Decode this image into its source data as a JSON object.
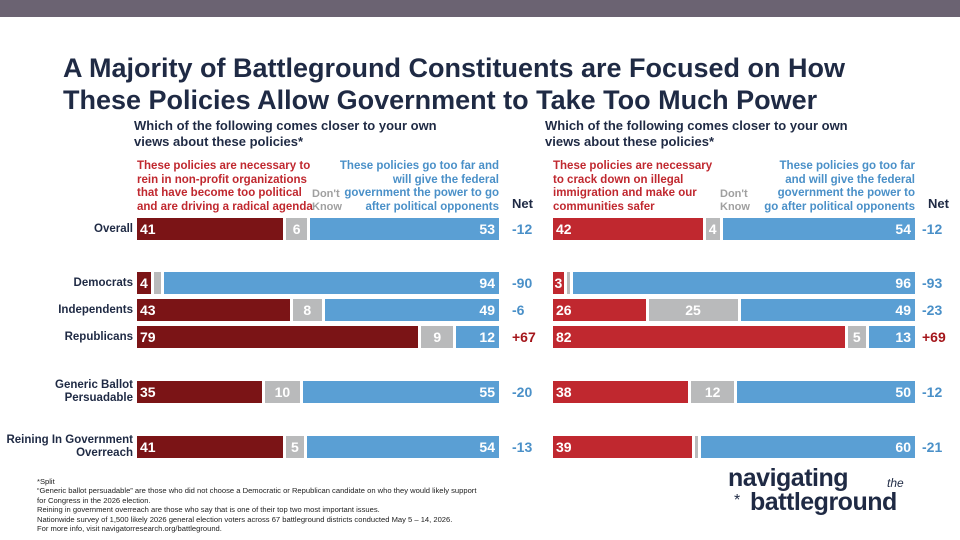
{
  "title_line1": "A Majority of Battleground Constituents are Focused on How",
  "title_line2": "These Policies Allow Government to Take Too Much Power",
  "colors": {
    "left_dark_red": "#7b1416",
    "left_red": "#c0282f",
    "dont_know": "#b9babb",
    "right_blue": "#5a9fd4",
    "net_red": "#a4161b",
    "net_blue": "#4a90c8"
  },
  "row_labels": [
    "Overall",
    "Democrats",
    "Independents",
    "Republicans",
    "Generic Ballot Persuadable",
    "Reining In Government Overreach"
  ],
  "row_label_lines": [
    [
      "Overall"
    ],
    [
      "Democrats"
    ],
    [
      "Independents"
    ],
    [
      "Republicans"
    ],
    [
      "Generic Ballot",
      "Persuadable"
    ],
    [
      "Reining In Government",
      "Overreach"
    ]
  ],
  "chart_data": [
    {
      "type": "bar",
      "stacked": true,
      "orientation": "horizontal",
      "question_line1": "Which of the following comes closer to your own",
      "question_line2": "views about these policies*",
      "categories": [
        "Overall",
        "Democrats",
        "Independents",
        "Republicans",
        "Generic Ballot Persuadable",
        "Reining In Government Overreach"
      ],
      "series": [
        {
          "name_lines": [
            "These policies are necessary to",
            "rein in non-profit organizations",
            "that have become too political",
            "and are driving a radical agenda"
          ],
          "values": [
            41,
            4,
            43,
            79,
            35,
            41
          ]
        },
        {
          "name_lines": [
            "Don't",
            "Know"
          ],
          "values": [
            6,
            2,
            8,
            9,
            10,
            5
          ]
        },
        {
          "name_lines": [
            "These policies go too far and",
            "will give the federal",
            "government the power to go",
            "after political opponents"
          ],
          "values": [
            53,
            94,
            49,
            12,
            55,
            54
          ]
        }
      ],
      "net_header": "Net",
      "net": [
        "-12",
        "-90",
        "-6",
        "+67",
        "-20",
        "-13"
      ]
    },
    {
      "type": "bar",
      "stacked": true,
      "orientation": "horizontal",
      "question_line1": "Which of the following comes closer to your own",
      "question_line2": "views about these policies*",
      "categories": [
        "Overall",
        "Democrats",
        "Independents",
        "Republicans",
        "Generic Ballot Persuadable",
        "Reining In Government Overreach"
      ],
      "series": [
        {
          "name_lines": [
            "These policies are necessary",
            "to crack down on illegal",
            "immigration and make our",
            "communities safer"
          ],
          "values": [
            42,
            3,
            26,
            82,
            38,
            39
          ]
        },
        {
          "name_lines": [
            "Don't",
            "Know"
          ],
          "values": [
            4,
            1,
            25,
            5,
            12,
            1
          ]
        },
        {
          "name_lines": [
            "These policies go too far",
            "and will give the federal",
            "government the power to",
            "go after political opponents"
          ],
          "values": [
            54,
            96,
            49,
            13,
            50,
            60
          ]
        }
      ],
      "net_header": "Net",
      "net": [
        "-12",
        "-93",
        "-23",
        "+69",
        "-12",
        "-21"
      ]
    }
  ],
  "footnotes": [
    "*Split",
    "“Generic ballot persuadable” are those who did not choose a Democratic or Republican candidate on who they would likely support",
    "for Congress in the 2026 election.",
    "Reining in government overreach are those who say that is one of their top two most important issues.",
    "Nationwide survey of 1,500 likely 2026 general election voters across 67 battleground districts conducted May 5 – 14, 2026.",
    "For more info, visit navigatorresearch.org/battleground."
  ],
  "logo": {
    "word1": "navigating",
    "word2": "the",
    "word3": "battleground",
    "star": "*"
  }
}
